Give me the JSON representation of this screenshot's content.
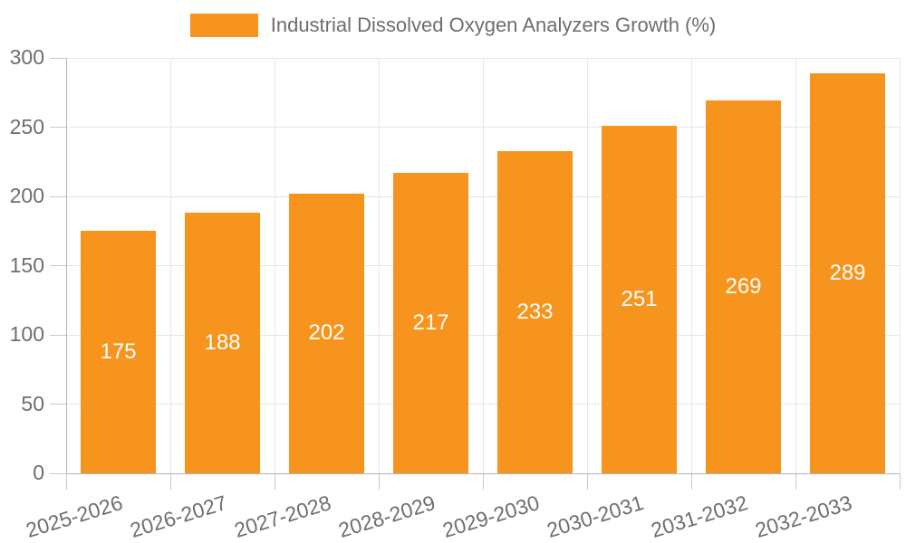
{
  "chart_data": {
    "type": "bar",
    "title": "Industrial Dissolved Oxygen Analyzers Growth (%)",
    "categories": [
      "2025-2026",
      "2026-2027",
      "2027-2028",
      "2028-2029",
      "2029-2030",
      "2030-2031",
      "2031-2032",
      "2032-2033"
    ],
    "values": [
      175,
      188,
      202,
      217,
      233,
      251,
      269,
      289
    ],
    "xlabel": "",
    "ylabel": "",
    "ylim": [
      0,
      300
    ],
    "yticks": [
      0,
      50,
      100,
      150,
      200,
      250,
      300
    ],
    "grid": true,
    "legend_position": "top-center",
    "x_label_rotation_deg": -17,
    "colors": {
      "bar": "#f7941d",
      "value_label": "#ffffff",
      "axis_text": "#6e6e6e",
      "grid_line": "#e6e6e6",
      "axis_line": "#b5b5b5",
      "tick_mark": "#c9c9c9",
      "background": "#ffffff"
    }
  }
}
